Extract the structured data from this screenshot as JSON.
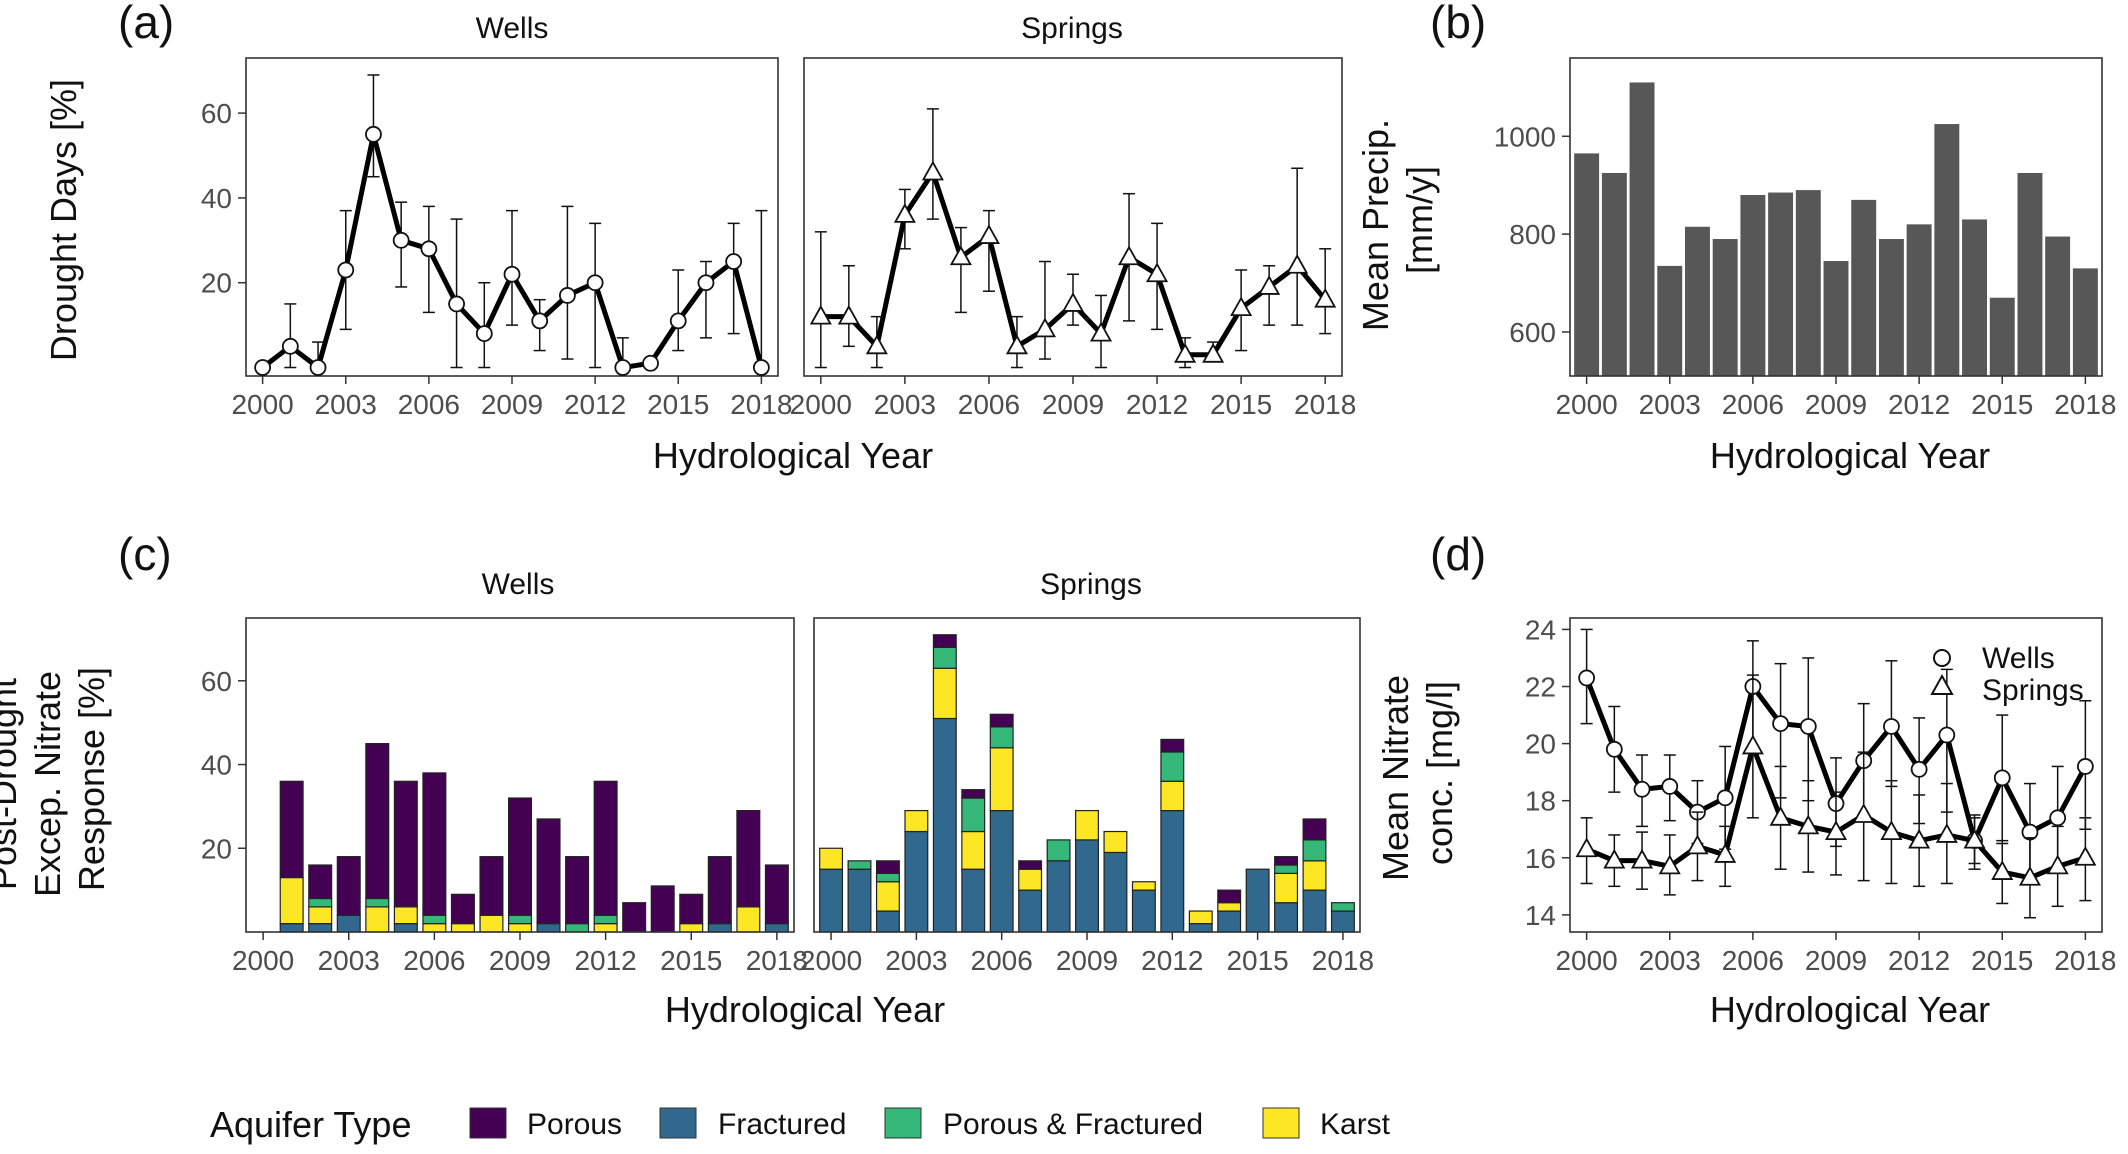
{
  "figure": {
    "x_label": "Hydrological Year",
    "legend_title": "Aquifer Type",
    "aquifer_types": [
      {
        "name": "Porous",
        "color": "#440154"
      },
      {
        "name": "Fractured",
        "color": "#31688e"
      },
      {
        "name": "Porous & Fractured",
        "color": "#35b779"
      },
      {
        "name": "Karst",
        "color": "#fde725"
      }
    ]
  },
  "chart_data": [
    {
      "id": "a",
      "tag": "(a)",
      "type": "line",
      "ylabel": "Drought Days [%]",
      "ylim": [
        -2,
        73
      ],
      "y_ticks": [
        20,
        40,
        60
      ],
      "x_ticks": [
        2000,
        2003,
        2006,
        2009,
        2012,
        2015,
        2018
      ],
      "xlim": [
        1999.4,
        2018.6
      ],
      "xlabel": "Hydrological Year",
      "facets": [
        {
          "name": "Wells",
          "marker": "circle",
          "x": [
            2000,
            2001,
            2002,
            2003,
            2004,
            2005,
            2006,
            2007,
            2008,
            2009,
            2010,
            2011,
            2012,
            2013,
            2014,
            2015,
            2016,
            2017,
            2018
          ],
          "y": [
            0,
            5,
            0,
            23,
            55,
            30,
            28,
            15,
            8,
            22,
            11,
            17,
            20,
            0,
            1,
            11,
            20,
            25,
            0
          ],
          "err_lo": [
            0,
            0,
            0,
            9,
            45,
            19,
            13,
            0,
            0,
            10,
            4,
            2,
            0,
            0,
            0,
            4,
            7,
            8,
            0
          ],
          "err_hi": [
            0,
            15,
            6,
            37,
            69,
            39,
            38,
            35,
            20,
            37,
            16,
            38,
            34,
            7,
            2,
            23,
            25,
            34,
            37
          ]
        },
        {
          "name": "Springs",
          "marker": "triangle",
          "x": [
            2000,
            2001,
            2002,
            2003,
            2004,
            2005,
            2006,
            2007,
            2008,
            2009,
            2010,
            2011,
            2012,
            2013,
            2014,
            2015,
            2016,
            2017,
            2018
          ],
          "y": [
            12,
            12,
            5,
            36,
            46,
            26,
            31,
            5,
            9,
            15,
            8,
            26,
            22,
            3,
            3,
            14,
            19,
            24,
            16
          ],
          "err_lo": [
            0,
            5,
            0,
            28,
            35,
            13,
            18,
            0,
            2,
            10,
            0,
            11,
            9,
            0,
            2,
            4,
            10,
            10,
            8
          ],
          "err_hi": [
            32,
            24,
            12,
            42,
            61,
            33,
            37,
            12,
            25,
            22,
            17,
            41,
            34,
            7,
            6,
            23,
            24,
            47,
            28
          ]
        }
      ]
    },
    {
      "id": "b",
      "tag": "(b)",
      "type": "bar",
      "ylabel_lines": [
        "Mean Precip.",
        "[mm/y]"
      ],
      "xlabel": "Hydrological Year",
      "ylim": [
        510,
        1160
      ],
      "y_ticks": [
        600,
        800,
        1000
      ],
      "x_ticks": [
        2000,
        2003,
        2006,
        2009,
        2012,
        2015,
        2018
      ],
      "xlim": [
        1999.4,
        2018.6
      ],
      "bar_color": "#575757",
      "x": [
        2000,
        2001,
        2002,
        2003,
        2004,
        2005,
        2006,
        2007,
        2008,
        2009,
        2010,
        2011,
        2012,
        2013,
        2014,
        2015,
        2016,
        2017,
        2018
      ],
      "values": [
        965,
        925,
        1110,
        735,
        815,
        790,
        880,
        885,
        890,
        745,
        870,
        790,
        820,
        1025,
        830,
        670,
        925,
        795,
        730
      ]
    },
    {
      "id": "c",
      "tag": "(c)",
      "type": "stacked-bar",
      "ylabel_lines": [
        "Post-Drought",
        "Excep. Nitrate",
        "Response [%]"
      ],
      "xlabel": "Hydrological Year",
      "ylim": [
        0,
        75
      ],
      "y_ticks": [
        20,
        40,
        60
      ],
      "x_ticks": [
        2000,
        2003,
        2006,
        2009,
        2012,
        2015,
        2018
      ],
      "xlim": [
        1999.4,
        2018.6
      ],
      "stack_order": [
        "Fractured",
        "Karst",
        "Porous & Fractured",
        "Porous"
      ],
      "facets": [
        {
          "name": "Wells",
          "x": [
            2001,
            2002,
            2003,
            2004,
            2005,
            2006,
            2007,
            2008,
            2009,
            2010,
            2011,
            2012,
            2013,
            2014,
            2015,
            2016,
            2017,
            2018
          ],
          "series": [
            {
              "name": "Fractured",
              "values": [
                2,
                2,
                4,
                0,
                2,
                0,
                0,
                0,
                0,
                2,
                0,
                0,
                0,
                0,
                0,
                2,
                0,
                2
              ]
            },
            {
              "name": "Karst",
              "values": [
                11,
                4,
                0,
                6,
                4,
                2,
                2,
                4,
                2,
                0,
                0,
                2,
                0,
                0,
                2,
                0,
                6,
                0
              ]
            },
            {
              "name": "Porous & Fractured",
              "values": [
                0,
                2,
                0,
                2,
                0,
                2,
                0,
                0,
                2,
                0,
                2,
                2,
                0,
                0,
                0,
                0,
                0,
                0
              ]
            },
            {
              "name": "Porous",
              "values": [
                23,
                8,
                14,
                37,
                30,
                34,
                7,
                14,
                28,
                25,
                16,
                32,
                7,
                11,
                7,
                16,
                23,
                14
              ]
            }
          ]
        },
        {
          "name": "Springs",
          "x": [
            2000,
            2001,
            2002,
            2003,
            2004,
            2005,
            2006,
            2007,
            2008,
            2009,
            2010,
            2011,
            2012,
            2013,
            2014,
            2015,
            2016,
            2017,
            2018
          ],
          "series": [
            {
              "name": "Fractured",
              "values": [
                15,
                15,
                5,
                24,
                51,
                15,
                29,
                10,
                17,
                22,
                19,
                10,
                29,
                2,
                5,
                15,
                7,
                10,
                5
              ]
            },
            {
              "name": "Karst",
              "values": [
                5,
                0,
                7,
                5,
                12,
                9,
                15,
                5,
                0,
                7,
                5,
                2,
                7,
                3,
                2,
                0,
                7,
                7,
                0
              ]
            },
            {
              "name": "Porous & Fractured",
              "values": [
                0,
                2,
                2,
                0,
                5,
                8,
                5,
                0,
                5,
                0,
                0,
                0,
                7,
                0,
                0,
                0,
                2,
                5,
                2
              ]
            },
            {
              "name": "Porous",
              "values": [
                0,
                0,
                3,
                0,
                3,
                2,
                3,
                2,
                0,
                0,
                0,
                0,
                3,
                0,
                3,
                0,
                2,
                5,
                0
              ]
            }
          ]
        }
      ]
    },
    {
      "id": "d",
      "tag": "(d)",
      "type": "line",
      "ylabel_lines": [
        "Mean Nitrate",
        "conc. [mg/l]"
      ],
      "xlabel": "Hydrological Year",
      "ylim": [
        13.4,
        24.4
      ],
      "y_ticks": [
        14,
        16,
        18,
        20,
        22,
        24
      ],
      "x_ticks": [
        2000,
        2003,
        2006,
        2009,
        2012,
        2015,
        2018
      ],
      "xlim": [
        1999.4,
        2018.6
      ],
      "series": [
        {
          "name": "Wells",
          "marker": "circle",
          "x": [
            2000,
            2001,
            2002,
            2003,
            2004,
            2005,
            2006,
            2007,
            2008,
            2009,
            2010,
            2011,
            2012,
            2013,
            2014,
            2015,
            2016,
            2017,
            2018
          ],
          "y": [
            22.3,
            19.8,
            18.4,
            18.5,
            17.6,
            18.1,
            22.0,
            20.7,
            20.6,
            17.9,
            19.4,
            20.6,
            19.1,
            20.3,
            16.6,
            18.8,
            16.9,
            17.4,
            19.2
          ],
          "err_lo": [
            20.7,
            18.3,
            17.1,
            17.3,
            16.5,
            16.3,
            19.8,
            18.1,
            18.0,
            16.4,
            17.5,
            18.5,
            17.2,
            17.6,
            15.6,
            16.5,
            15.3,
            15.7,
            17.0
          ],
          "err_hi": [
            24.0,
            21.3,
            19.6,
            19.6,
            18.7,
            19.9,
            23.6,
            22.8,
            23.0,
            19.5,
            21.4,
            22.9,
            20.9,
            22.6,
            17.5,
            21.0,
            18.6,
            19.2,
            21.5
          ]
        },
        {
          "name": "Springs",
          "marker": "triangle",
          "x": [
            2000,
            2001,
            2002,
            2003,
            2004,
            2005,
            2006,
            2007,
            2008,
            2009,
            2010,
            2011,
            2012,
            2013,
            2014,
            2015,
            2016,
            2017,
            2018
          ],
          "y": [
            16.3,
            15.9,
            15.9,
            15.7,
            16.4,
            16.1,
            19.9,
            17.4,
            17.1,
            16.9,
            17.5,
            16.9,
            16.6,
            16.8,
            16.6,
            15.5,
            15.3,
            15.7,
            16.0
          ],
          "err_lo": [
            15.1,
            15.0,
            14.9,
            14.7,
            15.2,
            15.0,
            17.4,
            15.6,
            15.5,
            15.4,
            15.2,
            15.1,
            15.0,
            15.1,
            15.8,
            14.4,
            13.9,
            14.3,
            14.5
          ],
          "err_hi": [
            17.4,
            16.8,
            16.9,
            16.8,
            17.6,
            17.1,
            22.4,
            19.2,
            18.7,
            18.3,
            19.7,
            18.7,
            18.2,
            18.6,
            17.4,
            16.6,
            16.7,
            17.1,
            17.4
          ]
        }
      ]
    }
  ]
}
